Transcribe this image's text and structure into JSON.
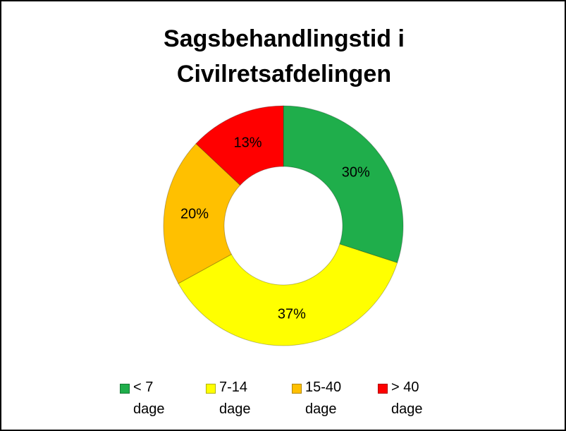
{
  "chart_data": {
    "type": "donut",
    "title": "Sagsbehandlingstid i Civilretsafdelingen",
    "categories": [
      "< 7 dage",
      "7-14 dage",
      "15-40 dage",
      "> 40 dage"
    ],
    "values": [
      30,
      37,
      20,
      13
    ],
    "value_labels": [
      "30%",
      "37%",
      "20%",
      "13%"
    ],
    "colors": [
      "#1fae4b",
      "#ffff00",
      "#ffc000",
      "#ff0000"
    ],
    "legend": "bottom"
  }
}
